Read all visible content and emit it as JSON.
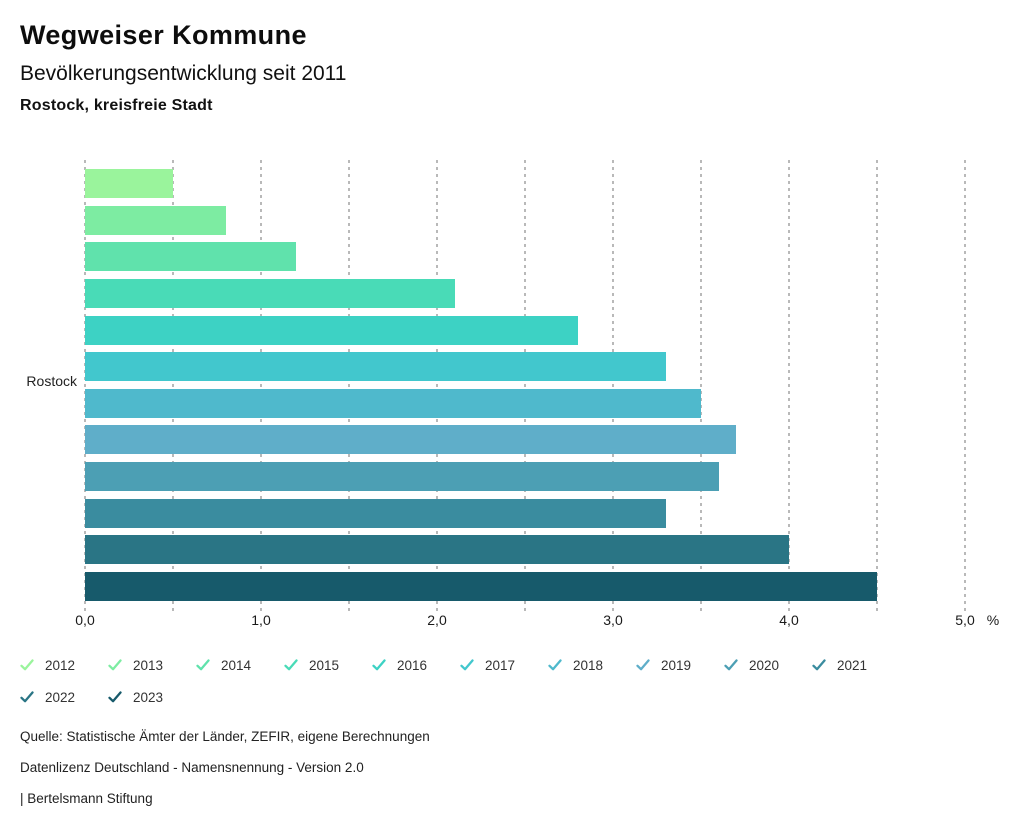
{
  "header": {
    "title": "Wegweiser Kommune",
    "subtitle": "Bevölkerungsentwicklung seit 2011",
    "region": "Rostock, kreisfreie Stadt"
  },
  "chart_data": {
    "type": "bar",
    "orientation": "horizontal",
    "title": "Bevölkerungsentwicklung seit 2011",
    "region": "Rostock, kreisfreie Stadt",
    "ylabel": "Rostock",
    "unit": "%",
    "xlim": [
      0,
      5
    ],
    "grid_step": 0.5,
    "grid_style": "dashed-vertical",
    "grid_color": "#b9b9b9",
    "legend_position": "bottom",
    "xticks": [
      {
        "value": 0,
        "label": "0,0"
      },
      {
        "value": 1,
        "label": "1,0"
      },
      {
        "value": 2,
        "label": "2,0"
      },
      {
        "value": 3,
        "label": "3,0"
      },
      {
        "value": 4,
        "label": "4,0"
      },
      {
        "value": 5,
        "label": "5,0"
      }
    ],
    "series": [
      {
        "name": "2012",
        "value": 0.5,
        "color": "#9AF49C"
      },
      {
        "name": "2013",
        "value": 0.8,
        "color": "#7DECA2"
      },
      {
        "name": "2014",
        "value": 1.2,
        "color": "#60E2AC"
      },
      {
        "name": "2015",
        "value": 2.1,
        "color": "#49DBB7"
      },
      {
        "name": "2016",
        "value": 2.8,
        "color": "#3DD2C4"
      },
      {
        "name": "2017",
        "value": 3.3,
        "color": "#42C7CD"
      },
      {
        "name": "2018",
        "value": 3.5,
        "color": "#4FB9CC"
      },
      {
        "name": "2019",
        "value": 3.7,
        "color": "#5FAEC9"
      },
      {
        "name": "2020",
        "value": 3.6,
        "color": "#4C9FB4"
      },
      {
        "name": "2021",
        "value": 3.3,
        "color": "#3A8C9F"
      },
      {
        "name": "2022",
        "value": 4.0,
        "color": "#2A7585"
      },
      {
        "name": "2023",
        "value": 4.5,
        "color": "#175A6B"
      }
    ]
  },
  "footer": {
    "source": "Quelle: Statistische Ämter der Länder, ZEFIR, eigene Berechnungen",
    "license": "Datenlizenz Deutschland - Namensnennung - Version 2.0",
    "attribution": "| Bertelsmann Stiftung"
  }
}
